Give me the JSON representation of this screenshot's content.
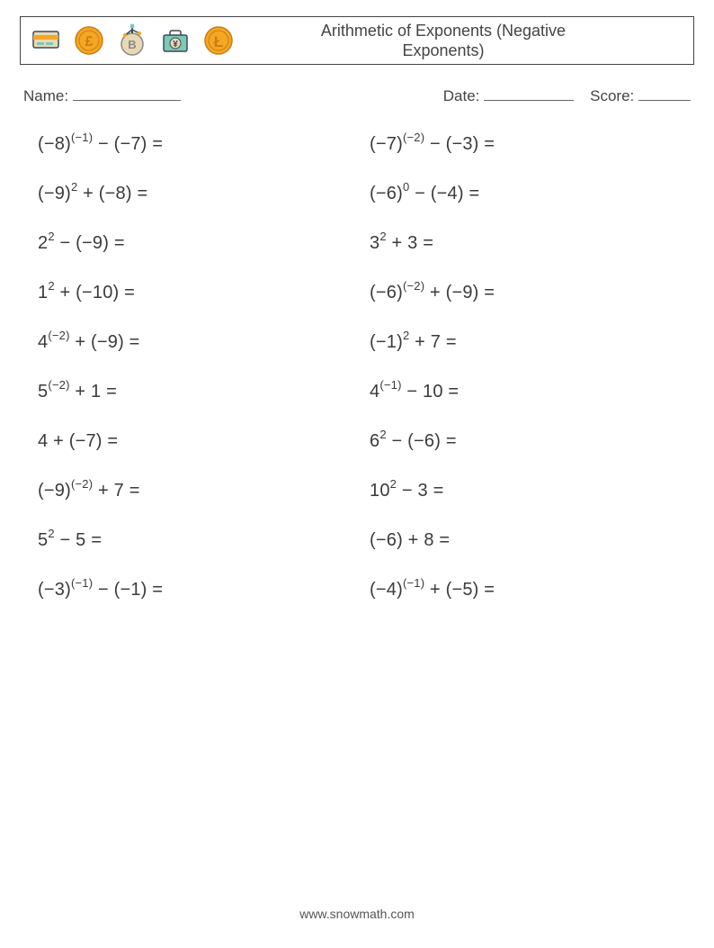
{
  "header": {
    "title_line1": "Arithmetic of Exponents (Negative",
    "title_line2": "Exponents)",
    "icons": [
      {
        "name": "credit-card-icon"
      },
      {
        "name": "pound-coin-icon"
      },
      {
        "name": "bitcoin-coin-icon"
      },
      {
        "name": "yen-briefcase-icon"
      },
      {
        "name": "litecoin-coin-icon"
      }
    ]
  },
  "meta": {
    "name_label": "Name:",
    "date_label": "Date:",
    "score_label": "Score:"
  },
  "problems": {
    "left": [
      {
        "base": "(−8)",
        "exp": "(−1)",
        "op": "−",
        "second": "(−7)"
      },
      {
        "base": "(−9)",
        "exp": "2",
        "op": "+",
        "second": "(−8)"
      },
      {
        "base": "2",
        "exp": "2",
        "op": "−",
        "second": "(−9)"
      },
      {
        "base": "1",
        "exp": "2",
        "op": "+",
        "second": "(−10)"
      },
      {
        "base": "4",
        "exp": "(−2)",
        "op": "+",
        "second": "(−9)"
      },
      {
        "base": "5",
        "exp": "(−2)",
        "op": "+",
        "second": "1"
      },
      {
        "base": "4",
        "exp": "",
        "op": "+",
        "second": "(−7)"
      },
      {
        "base": "(−9)",
        "exp": "(−2)",
        "op": "+",
        "second": "7"
      },
      {
        "base": "5",
        "exp": "2",
        "op": "−",
        "second": "5"
      },
      {
        "base": "(−3)",
        "exp": "(−1)",
        "op": "−",
        "second": "(−1)"
      }
    ],
    "right": [
      {
        "base": "(−7)",
        "exp": "(−2)",
        "op": "−",
        "second": "(−3)"
      },
      {
        "base": "(−6)",
        "exp": "0",
        "op": "−",
        "second": "(−4)"
      },
      {
        "base": "3",
        "exp": "2",
        "op": "+",
        "second": "3"
      },
      {
        "base": "(−6)",
        "exp": "(−2)",
        "op": "+",
        "second": "(−9)"
      },
      {
        "base": "(−1)",
        "exp": "2",
        "op": "+",
        "second": "7"
      },
      {
        "base": "4",
        "exp": "(−1)",
        "op": "−",
        "second": "10"
      },
      {
        "base": "6",
        "exp": "2",
        "op": "−",
        "second": "(−6)"
      },
      {
        "base": "10",
        "exp": "2",
        "op": "−",
        "second": "3"
      },
      {
        "base": "(−6)",
        "exp": "",
        "op": "+",
        "second": "8"
      },
      {
        "base": "(−4)",
        "exp": "(−1)",
        "op": "+",
        "second": "(−5)"
      }
    ]
  },
  "equals": " =",
  "footer": {
    "url": "www.snowmath.com"
  },
  "colors": {
    "text": "#3a3a3a",
    "border": "#444444",
    "background": "#ffffff",
    "icon_orange": "#f5a623",
    "icon_beige": "#e8d9b5",
    "icon_teal": "#7ec8b8",
    "icon_dark": "#3a4a58"
  }
}
